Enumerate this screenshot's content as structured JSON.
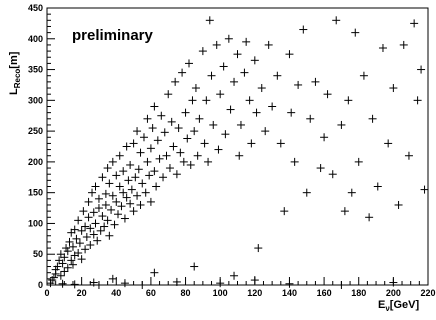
{
  "chart_data": {
    "type": "scatter",
    "annotation": "preliminary",
    "xlabel": {
      "main": "E",
      "sub": "ν",
      "unit": "[GeV]"
    },
    "ylabel": {
      "main": "L",
      "sub": "Reco",
      "unit": "[m]"
    },
    "xlim": [
      0,
      220
    ],
    "ylim": [
      0,
      450
    ],
    "x_ticks": [
      "0",
      "20",
      "40",
      "60",
      "80",
      "100",
      "120",
      "140",
      "160",
      "180",
      "200",
      "220"
    ],
    "y_ticks": [
      "0",
      "50",
      "100",
      "150",
      "200",
      "250",
      "300",
      "350",
      "400",
      "450"
    ],
    "grid": false,
    "marker": "plus",
    "points": [
      [
        2,
        3
      ],
      [
        3,
        8
      ],
      [
        4,
        12
      ],
      [
        5,
        18
      ],
      [
        5,
        25
      ],
      [
        6,
        30
      ],
      [
        7,
        40
      ],
      [
        8,
        15
      ],
      [
        8,
        50
      ],
      [
        9,
        35
      ],
      [
        10,
        22
      ],
      [
        10,
        45
      ],
      [
        11,
        60
      ],
      [
        12,
        28
      ],
      [
        12,
        55
      ],
      [
        13,
        70
      ],
      [
        14,
        40
      ],
      [
        14,
        85
      ],
      [
        15,
        33
      ],
      [
        15,
        62
      ],
      [
        16,
        48
      ],
      [
        16,
        90
      ],
      [
        17,
        75
      ],
      [
        18,
        52
      ],
      [
        18,
        105
      ],
      [
        19,
        68
      ],
      [
        20,
        42
      ],
      [
        20,
        88
      ],
      [
        21,
        120
      ],
      [
        22,
        58
      ],
      [
        22,
        95
      ],
      [
        23,
        78
      ],
      [
        24,
        110
      ],
      [
        24,
        135
      ],
      [
        25,
        65
      ],
      [
        25,
        92
      ],
      [
        26,
        150
      ],
      [
        27,
        82
      ],
      [
        27,
        118
      ],
      [
        28,
        100
      ],
      [
        28,
        160
      ],
      [
        29,
        72
      ],
      [
        30,
        125
      ],
      [
        30,
        140
      ],
      [
        31,
        88
      ],
      [
        32,
        112
      ],
      [
        32,
        175
      ],
      [
        33,
        95
      ],
      [
        34,
        148
      ],
      [
        34,
        130
      ],
      [
        35,
        105
      ],
      [
        35,
        190
      ],
      [
        36,
        80
      ],
      [
        36,
        165
      ],
      [
        37,
        122
      ],
      [
        38,
        145
      ],
      [
        38,
        200
      ],
      [
        39,
        98
      ],
      [
        40,
        135
      ],
      [
        40,
        178
      ],
      [
        41,
        115
      ],
      [
        42,
        160
      ],
      [
        42,
        210
      ],
      [
        43,
        128
      ],
      [
        44,
        150
      ],
      [
        44,
        185
      ],
      [
        45,
        108
      ],
      [
        46,
        142
      ],
      [
        46,
        225
      ],
      [
        47,
        170
      ],
      [
        48,
        132
      ],
      [
        48,
        195
      ],
      [
        49,
        155
      ],
      [
        50,
        120
      ],
      [
        50,
        230
      ],
      [
        51,
        175
      ],
      [
        52,
        145
      ],
      [
        52,
        250
      ],
      [
        53,
        188
      ],
      [
        54,
        130
      ],
      [
        54,
        215
      ],
      [
        55,
        165
      ],
      [
        56,
        240
      ],
      [
        57,
        150
      ],
      [
        58,
        200
      ],
      [
        58,
        270
      ],
      [
        59,
        178
      ],
      [
        60,
        135
      ],
      [
        60,
        222
      ],
      [
        61,
        255
      ],
      [
        62,
        185
      ],
      [
        62,
        290
      ],
      [
        63,
        160
      ],
      [
        64,
        235
      ],
      [
        65,
        205
      ],
      [
        66,
        275
      ],
      [
        67,
        175
      ],
      [
        68,
        248
      ],
      [
        69,
        210
      ],
      [
        70,
        310
      ],
      [
        71,
        190
      ],
      [
        72,
        265
      ],
      [
        73,
        225
      ],
      [
        74,
        330
      ],
      [
        75,
        180
      ],
      [
        76,
        255
      ],
      [
        77,
        215
      ],
      [
        78,
        345
      ],
      [
        79,
        200
      ],
      [
        80,
        280
      ],
      [
        81,
        238
      ],
      [
        82,
        360
      ],
      [
        83,
        195
      ],
      [
        84,
        300
      ],
      [
        85,
        250
      ],
      [
        86,
        320
      ],
      [
        87,
        210
      ],
      [
        88,
        270
      ],
      [
        90,
        380
      ],
      [
        91,
        230
      ],
      [
        92,
        300
      ],
      [
        93,
        200
      ],
      [
        94,
        430
      ],
      [
        95,
        340
      ],
      [
        96,
        260
      ],
      [
        98,
        390
      ],
      [
        99,
        220
      ],
      [
        100,
        310
      ],
      [
        102,
        355
      ],
      [
        103,
        245
      ],
      [
        105,
        400
      ],
      [
        106,
        285
      ],
      [
        108,
        330
      ],
      [
        110,
        375
      ],
      [
        111,
        210
      ],
      [
        112,
        260
      ],
      [
        114,
        345
      ],
      [
        115,
        395
      ],
      [
        117,
        300
      ],
      [
        118,
        230
      ],
      [
        120,
        365
      ],
      [
        121,
        280
      ],
      [
        122,
        60
      ],
      [
        124,
        320
      ],
      [
        126,
        250
      ],
      [
        128,
        390
      ],
      [
        130,
        290
      ],
      [
        133,
        340
      ],
      [
        135,
        230
      ],
      [
        137,
        120
      ],
      [
        140,
        375
      ],
      [
        141,
        280
      ],
      [
        143,
        200
      ],
      [
        145,
        325
      ],
      [
        148,
        415
      ],
      [
        150,
        150
      ],
      [
        152,
        270
      ],
      [
        155,
        330
      ],
      [
        158,
        190
      ],
      [
        160,
        240
      ],
      [
        162,
        310
      ],
      [
        165,
        180
      ],
      [
        167,
        430
      ],
      [
        170,
        260
      ],
      [
        172,
        120
      ],
      [
        174,
        300
      ],
      [
        176,
        150
      ],
      [
        178,
        410
      ],
      [
        180,
        200
      ],
      [
        183,
        340
      ],
      [
        186,
        110
      ],
      [
        188,
        270
      ],
      [
        191,
        160
      ],
      [
        194,
        385
      ],
      [
        197,
        230
      ],
      [
        200,
        320
      ],
      [
        203,
        130
      ],
      [
        206,
        390
      ],
      [
        209,
        210
      ],
      [
        212,
        425
      ],
      [
        214,
        300
      ],
      [
        216,
        350
      ],
      [
        218,
        155
      ],
      [
        30,
        0
      ],
      [
        55,
        0
      ],
      [
        75,
        5
      ],
      [
        100,
        3
      ],
      [
        120,
        8
      ],
      [
        140,
        2
      ],
      [
        170,
        0
      ],
      [
        200,
        4
      ],
      [
        38,
        10
      ],
      [
        62,
        20
      ],
      [
        85,
        30
      ],
      [
        108,
        15
      ],
      [
        9,
        2
      ],
      [
        16,
        1
      ],
      [
        27,
        4
      ],
      [
        45,
        3
      ]
    ]
  }
}
